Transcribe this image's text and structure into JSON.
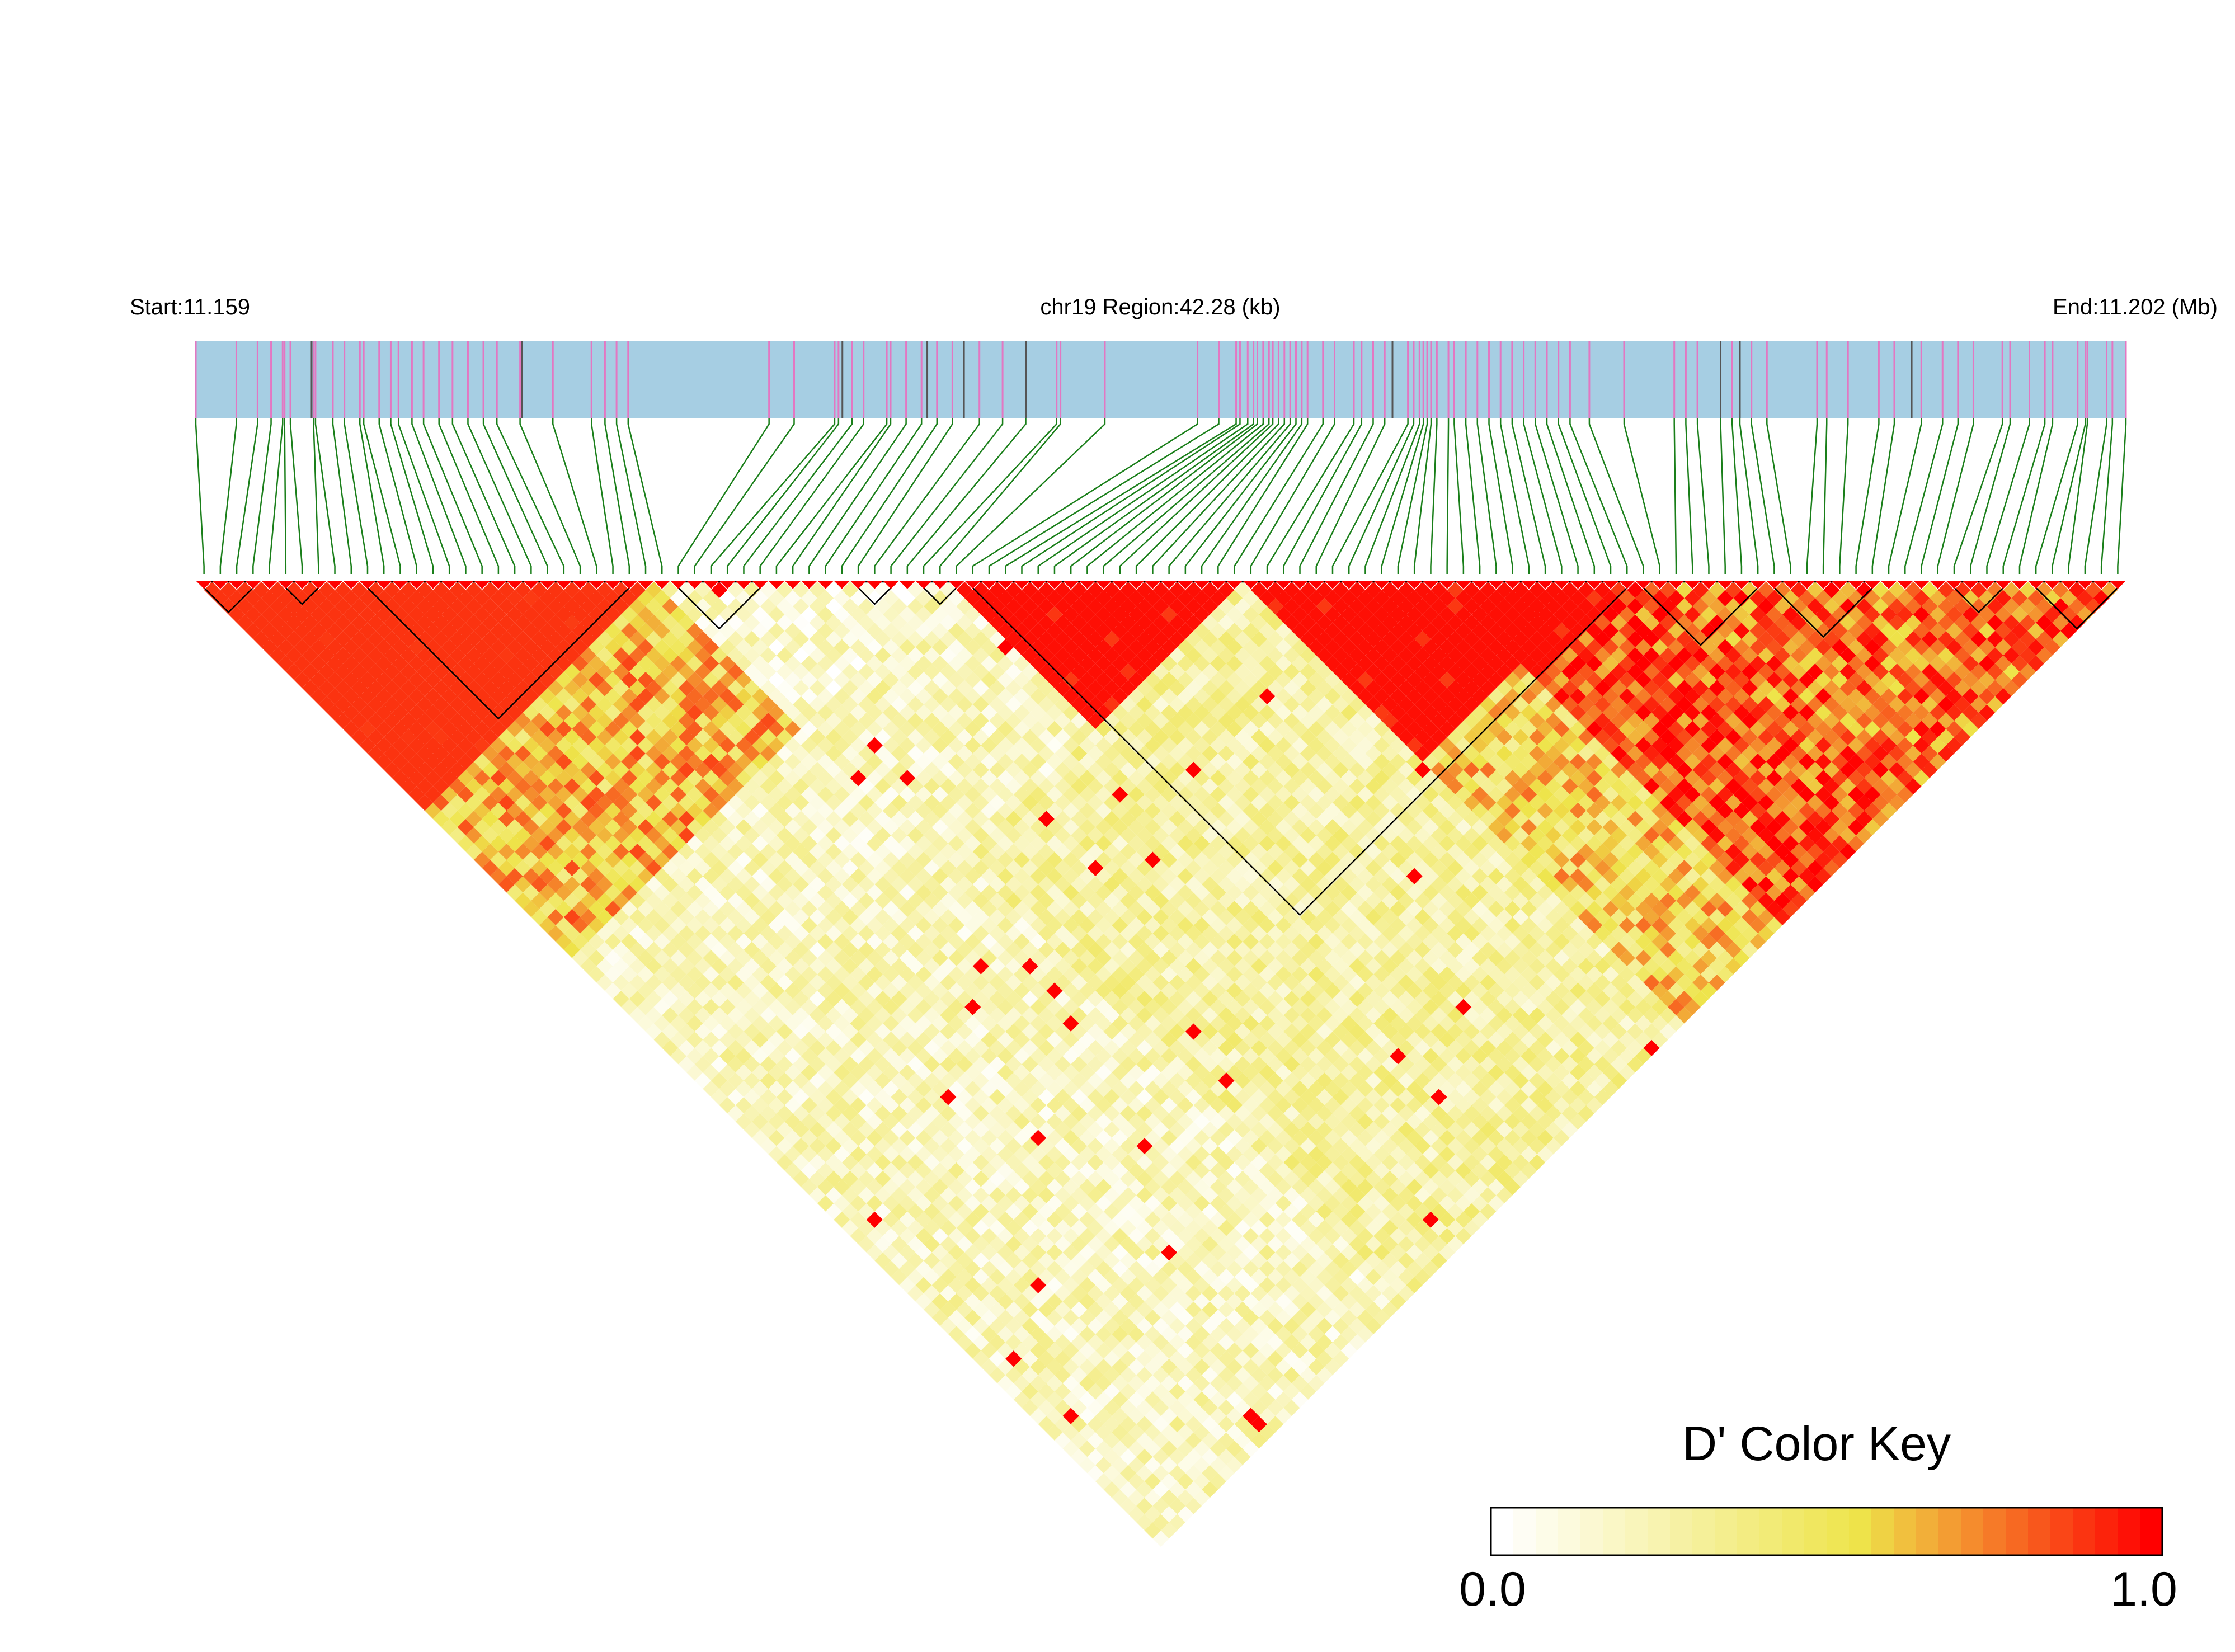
{
  "chart_data": {
    "type": "heatmap",
    "title": "chr19 Region:42.28 (kb)",
    "start_label": "Start:11.159",
    "end_label": "End:11.202 (Mb)",
    "region": {
      "chromosome": "chr19",
      "start_mb": 11.159,
      "end_mb": 11.202,
      "length_kb": 42.28
    },
    "colors": {
      "gene_bar": "#a6cee3",
      "marker_line_pink": "#e377c2",
      "marker_line_gray": "#555555",
      "connector_line": "#1a7f1a",
      "d_low": "#ffffff",
      "d_mid": "#eee44a",
      "d_high": "#ff0000",
      "block_outline": "#000000"
    },
    "snp_count": 118,
    "snp_positions_relative": [
      0.0,
      0.021,
      0.032,
      0.039,
      0.045,
      0.046,
      0.049,
      0.061,
      0.062,
      0.071,
      0.077,
      0.085,
      0.087,
      0.095,
      0.101,
      0.105,
      0.112,
      0.118,
      0.126,
      0.133,
      0.141,
      0.149,
      0.156,
      0.168,
      0.185,
      0.205,
      0.212,
      0.218,
      0.224,
      0.297,
      0.31,
      0.331,
      0.333,
      0.34,
      0.346,
      0.358,
      0.36,
      0.368,
      0.376,
      0.384,
      0.392,
      0.406,
      0.418,
      0.43,
      0.446,
      0.448,
      0.471,
      0.519,
      0.53,
      0.539,
      0.541,
      0.545,
      0.548,
      0.55,
      0.553,
      0.556,
      0.558,
      0.561,
      0.564,
      0.567,
      0.57,
      0.573,
      0.576,
      0.584,
      0.59,
      0.6,
      0.604,
      0.61,
      0.616,
      0.628,
      0.631,
      0.634,
      0.636,
      0.638,
      0.64,
      0.643,
      0.649,
      0.652,
      0.658,
      0.664,
      0.67,
      0.676,
      0.682,
      0.688,
      0.694,
      0.7,
      0.706,
      0.712,
      0.722,
      0.74,
      0.766,
      0.772,
      0.778,
      0.79,
      0.796,
      0.8,
      0.806,
      0.814,
      0.84,
      0.845,
      0.856,
      0.872,
      0.88,
      0.894,
      0.905,
      0.913,
      0.921,
      0.936,
      0.94,
      0.95,
      0.958,
      0.962,
      0.975,
      0.979,
      0.98,
      0.99,
      0.993,
      1.0
    ],
    "dark_marker_positions_relative": [
      0.06,
      0.169,
      0.335,
      0.379,
      0.398,
      0.43,
      0.62,
      0.79,
      0.8,
      0.889
    ],
    "ld_regions": [
      {
        "i0": 0,
        "i1": 28,
        "j0": 0,
        "j1": 28,
        "dprime": 0.9
      },
      {
        "i0": 0,
        "i1": 28,
        "j0": 28,
        "j1": 46,
        "dprime": 0.62
      },
      {
        "i0": 0,
        "i1": 46,
        "j0": 46,
        "j1": 118,
        "dprime": 0.2
      },
      {
        "i0": 28,
        "i1": 46,
        "j0": 28,
        "j1": 46,
        "dprime": 0.15
      },
      {
        "i0": 46,
        "i1": 88,
        "j0": 46,
        "j1": 88,
        "dprime": 0.97
      },
      {
        "i0": 46,
        "i1": 88,
        "j0": 88,
        "j1": 118,
        "dprime": 0.85
      },
      {
        "i0": 88,
        "i1": 118,
        "j0": 88,
        "j1": 118,
        "dprime": 0.8
      },
      {
        "i0": 30,
        "i1": 64,
        "j0": 64,
        "j1": 118,
        "dprime": 0.28
      },
      {
        "i0": 64,
        "i1": 76,
        "j0": 86,
        "j1": 118,
        "dprime": 0.55
      }
    ],
    "ld_blocks": [
      {
        "start": 0,
        "end": 3
      },
      {
        "start": 5,
        "end": 7
      },
      {
        "start": 10,
        "end": 26
      },
      {
        "start": 29,
        "end": 34
      },
      {
        "start": 40,
        "end": 42
      },
      {
        "start": 44,
        "end": 46
      },
      {
        "start": 47,
        "end": 87
      },
      {
        "start": 88,
        "end": 95
      },
      {
        "start": 96,
        "end": 102
      },
      {
        "start": 107,
        "end": 110
      },
      {
        "start": 112,
        "end": 117
      }
    ],
    "color_key": {
      "title": "D' Color Key",
      "min_label": "0.0",
      "max_label": "1.0",
      "min": 0.0,
      "max": 1.0,
      "steps": 30
    }
  }
}
